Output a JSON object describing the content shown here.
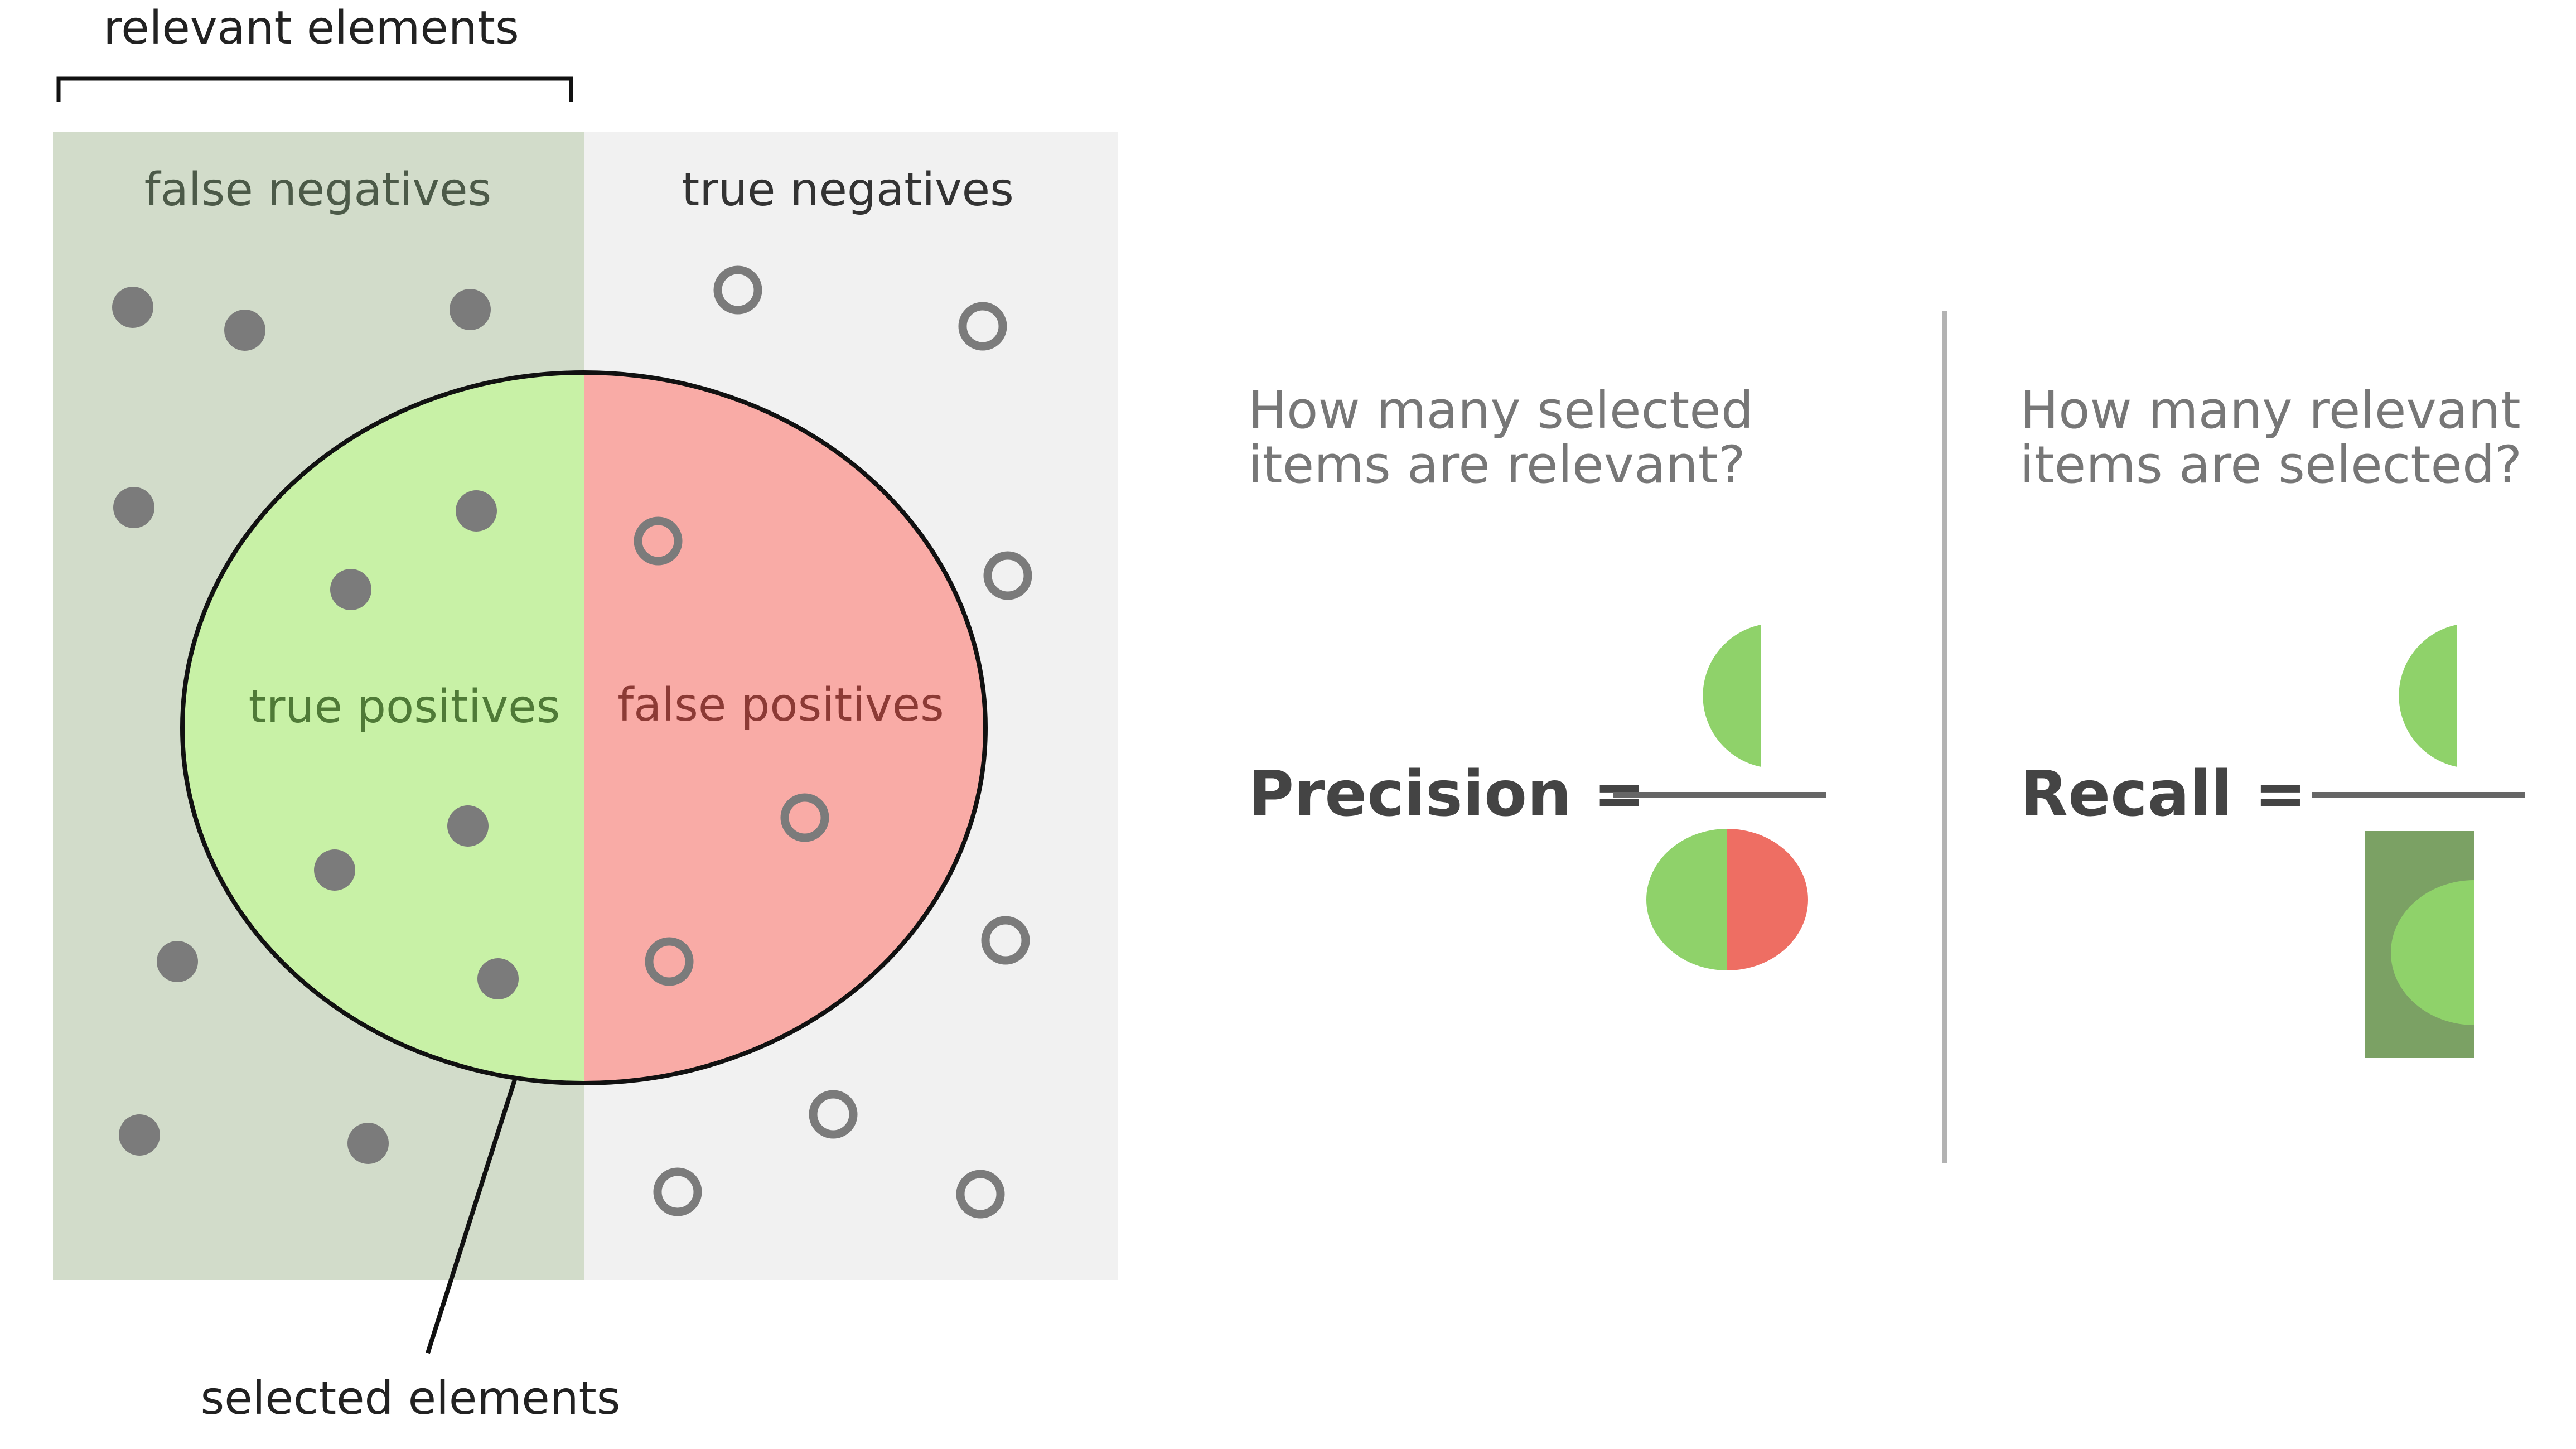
{
  "labels": {
    "relevant_elements": "relevant elements",
    "false_negatives": "false negatives",
    "true_negatives": "true negatives",
    "true_positives": "true positives",
    "false_positives": "false positives",
    "selected_elements": "selected elements"
  },
  "precision": {
    "question_line1": "How many selected",
    "question_line2": "items are relevant?",
    "label": "Precision ="
  },
  "recall": {
    "question_line1": "How many relevant",
    "question_line2": "items are selected?",
    "label": "Recall ="
  },
  "colors": {
    "relevant_region": "#d2dcca",
    "negative_region": "#f1f1f1",
    "true_positive": "#c8f1a6",
    "false_positive": "#f9aba6",
    "dot": "#7b7b7b",
    "formula_green": "#8fd26a",
    "formula_red": "#ee6e63",
    "formula_dark_green": "#7ba164",
    "divider": "#b2b2b2"
  }
}
